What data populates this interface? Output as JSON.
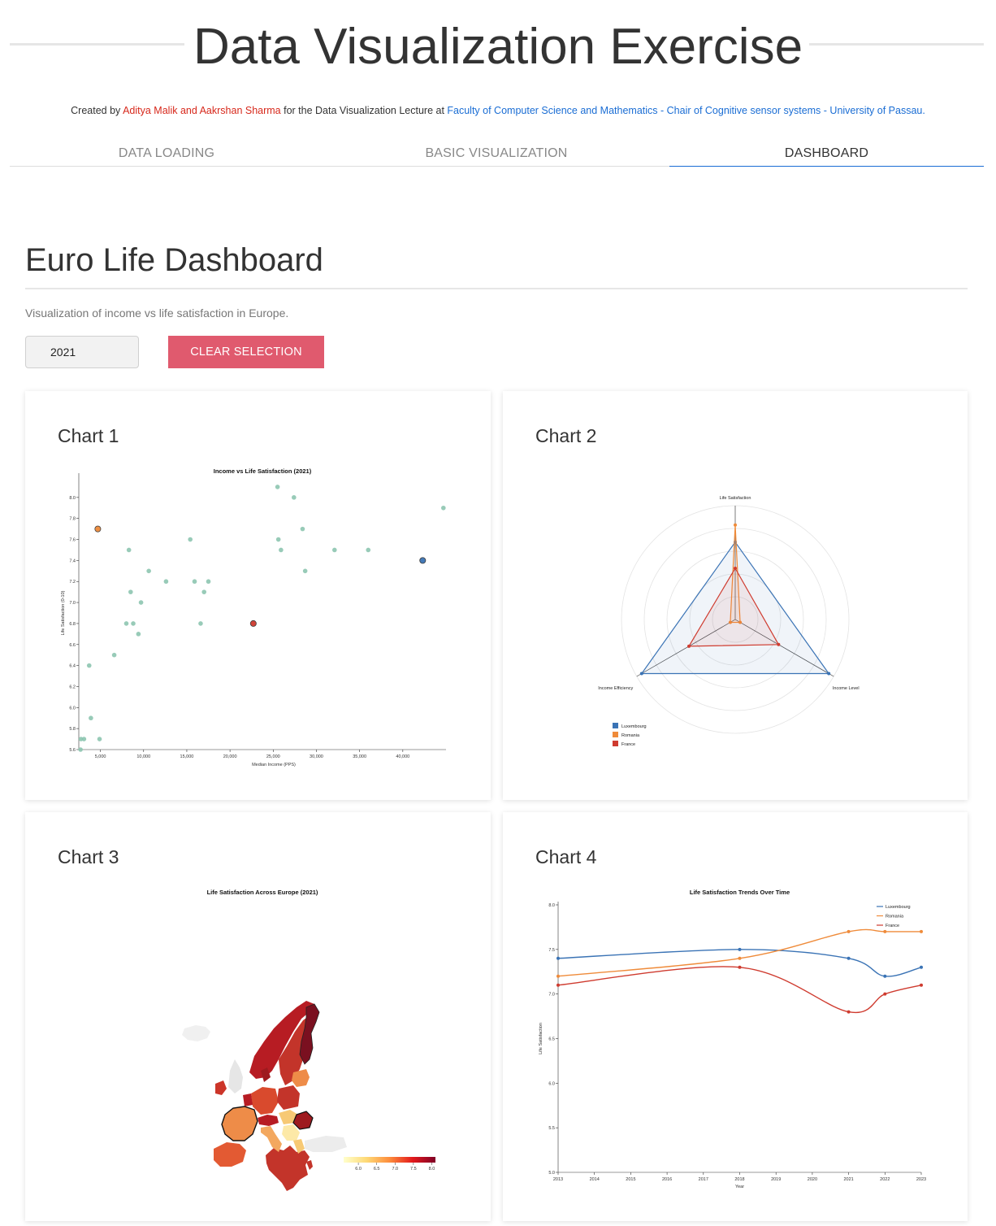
{
  "header": {
    "title": "Data Visualization Exercise",
    "credits": {
      "prefix": "Created by ",
      "authors": "Aditya Malik and Aakrshan Sharma",
      "middle": " for the Data Visualization Lecture at ",
      "link1": "Faculty of Computer Science and Mathematics",
      "sep1": " - ",
      "link2": "Chair of Cognitive sensor systems",
      "sep2": " - ",
      "link3": "University of Passau",
      "suffix": "."
    }
  },
  "tabs": [
    {
      "label": "DATA LOADING",
      "active": false
    },
    {
      "label": "BASIC VISUALIZATION",
      "active": false
    },
    {
      "label": "DASHBOARD",
      "active": true
    }
  ],
  "dashboard": {
    "title": "Euro Life Dashboard",
    "subtitle": "Visualization of income vs life satisfaction in Europe.",
    "year_value": "2021",
    "clear_label": "CLEAR SELECTION"
  },
  "colors": {
    "accent": "#1a6dd4",
    "clear_button": "#e05a6e",
    "scatter_point": "#8dc5b0",
    "luxembourg": "#3a73b5",
    "romania": "#ef8b3a",
    "france": "#cf3b2f"
  },
  "cards": [
    {
      "title": "Chart 1"
    },
    {
      "title": "Chart 2"
    },
    {
      "title": "Chart 3"
    },
    {
      "title": "Chart 4"
    }
  ],
  "chart_data": [
    {
      "type": "scatter",
      "title": "Income vs Life Satisfaction (2021)",
      "xlabel": "Median Income (PPS)",
      "ylabel": "Life Satisfaction (0-10)",
      "xlim": [
        2500,
        45000
      ],
      "ylim": [
        5.6,
        8.2
      ],
      "x_ticks": [
        "5,000",
        "10,000",
        "15,000",
        "20,000",
        "25,000",
        "30,000",
        "35,000",
        "40,000"
      ],
      "y_ticks": [
        "5.6",
        "5.8",
        "6.0",
        "6.2",
        "6.4",
        "6.6",
        "6.8",
        "7.0",
        "7.2",
        "7.4",
        "7.6",
        "7.8",
        "8.0"
      ],
      "points": [
        {
          "x": 2700,
          "y": 5.6
        },
        {
          "x": 2750,
          "y": 5.7
        },
        {
          "x": 3100,
          "y": 5.7
        },
        {
          "x": 3700,
          "y": 6.4
        },
        {
          "x": 3900,
          "y": 5.9
        },
        {
          "x": 4900,
          "y": 5.7
        },
        {
          "x": 6600,
          "y": 6.5
        },
        {
          "x": 8000,
          "y": 6.8
        },
        {
          "x": 8300,
          "y": 7.5
        },
        {
          "x": 8500,
          "y": 7.1
        },
        {
          "x": 8800,
          "y": 6.8
        },
        {
          "x": 9400,
          "y": 6.7
        },
        {
          "x": 9700,
          "y": 7.0
        },
        {
          "x": 10600,
          "y": 7.3
        },
        {
          "x": 12600,
          "y": 7.2
        },
        {
          "x": 15400,
          "y": 7.6
        },
        {
          "x": 15900,
          "y": 7.2
        },
        {
          "x": 16600,
          "y": 6.8
        },
        {
          "x": 17000,
          "y": 7.1
        },
        {
          "x": 17500,
          "y": 7.2
        },
        {
          "x": 25500,
          "y": 8.1
        },
        {
          "x": 25600,
          "y": 7.6
        },
        {
          "x": 25900,
          "y": 7.5
        },
        {
          "x": 27400,
          "y": 8.0
        },
        {
          "x": 28400,
          "y": 7.7
        },
        {
          "x": 28700,
          "y": 7.3
        },
        {
          "x": 32100,
          "y": 7.5
        },
        {
          "x": 36000,
          "y": 7.5
        },
        {
          "x": 44700,
          "y": 7.9
        },
        {
          "x": 4700,
          "y": 7.7,
          "highlight": "romania"
        },
        {
          "x": 22700,
          "y": 6.8,
          "highlight": "france"
        },
        {
          "x": 42300,
          "y": 7.4,
          "highlight": "luxembourg"
        }
      ]
    },
    {
      "type": "radar",
      "axes": [
        "Life Satisfaction",
        "Income Level",
        "Income Efficiency"
      ],
      "scale_max": 1,
      "series": [
        {
          "name": "Luxembourg",
          "values": [
            0.68,
            0.95,
            0.95
          ]
        },
        {
          "name": "Romania",
          "values": [
            0.83,
            0.05,
            0.05
          ]
        },
        {
          "name": "France",
          "values": [
            0.45,
            0.44,
            0.47
          ]
        }
      ]
    },
    {
      "type": "choropleth",
      "title": "Life Satisfaction Across Europe (2021)",
      "legend_ticks": [
        "6.0",
        "6.5",
        "7.0",
        "7.5",
        "8.0"
      ],
      "color_range": [
        5.6,
        8.1
      ]
    },
    {
      "type": "line",
      "title": "Life Satisfaction Trends Over Time",
      "xlabel": "Year",
      "ylabel": "Life Satisfaction",
      "ylim": [
        5.0,
        8.0
      ],
      "x_ticks": [
        "2013",
        "2014",
        "2015",
        "2016",
        "2017",
        "2018",
        "2019",
        "2020",
        "2021",
        "2022",
        "2023"
      ],
      "y_ticks": [
        "5.0",
        "5.5",
        "6.0",
        "6.5",
        "7.0",
        "7.5",
        "8.0"
      ],
      "series": [
        {
          "name": "Luxembourg",
          "x": [
            2013,
            2018,
            2021,
            2022,
            2023
          ],
          "values": [
            7.4,
            7.5,
            7.4,
            7.2,
            7.3
          ]
        },
        {
          "name": "Romania",
          "x": [
            2013,
            2018,
            2021,
            2022,
            2023
          ],
          "values": [
            7.2,
            7.4,
            7.7,
            7.7,
            7.7
          ]
        },
        {
          "name": "France",
          "x": [
            2013,
            2018,
            2021,
            2022,
            2023
          ],
          "values": [
            7.1,
            7.3,
            6.8,
            7.0,
            7.1
          ]
        }
      ]
    }
  ]
}
